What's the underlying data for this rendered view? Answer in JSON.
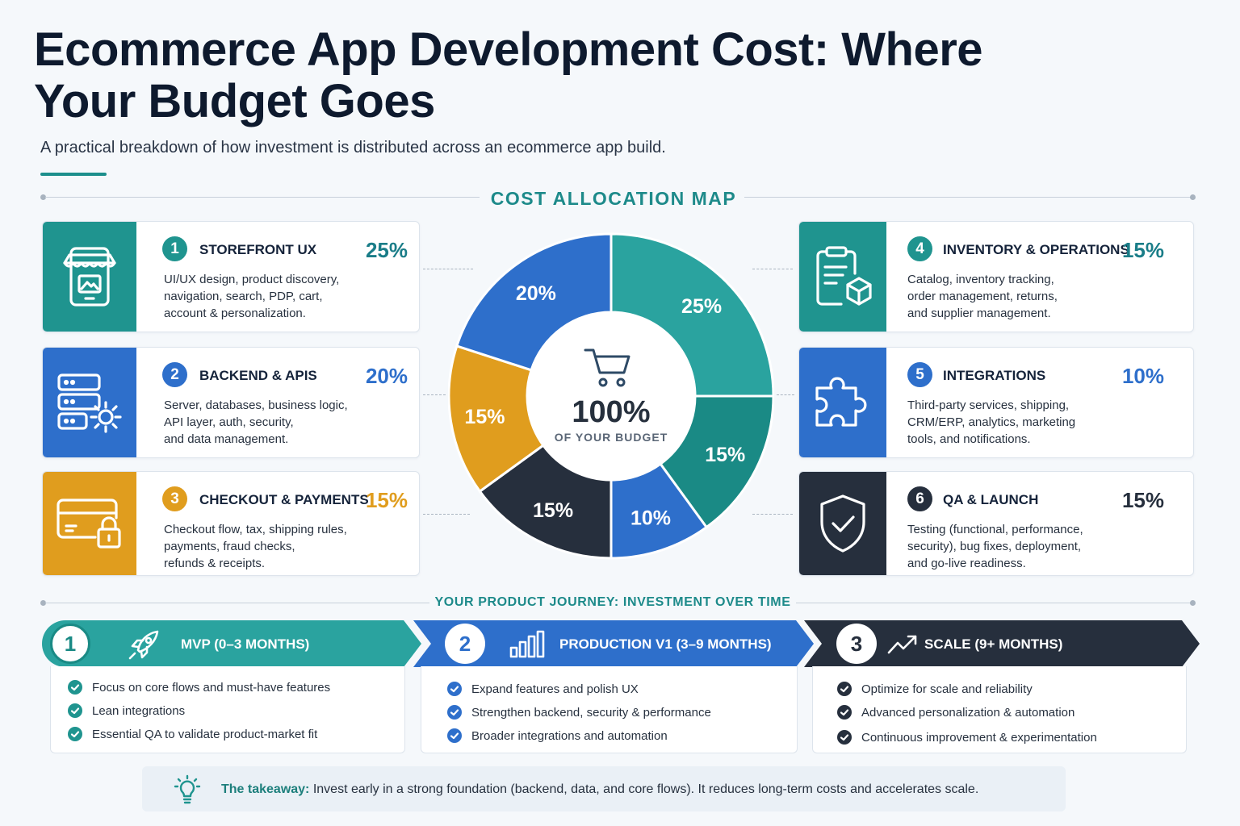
{
  "title": "Ecommerce App Development Cost: Where Your Budget Goes",
  "subtitle": "A practical breakdown of how investment is distributed across an ecommerce app build.",
  "map_heading": "COST ALLOCATION MAP",
  "journey_heading": "YOUR PRODUCT JOURNEY: INVESTMENT OVER TIME",
  "colors": {
    "teal_light": "#2aa39f",
    "teal_dark": "#1a8a85",
    "blue": "#2e6fcb",
    "gold": "#e09d1e",
    "navy": "#262f3d"
  },
  "categories": [
    {
      "num": "1",
      "title": "STOREFRONT UX",
      "pct": "25%",
      "icon": "storefront-phone-icon",
      "lines": [
        "UI/UX design, product discovery,",
        "navigation, search, PDP, cart,",
        "account & personalization."
      ]
    },
    {
      "num": "2",
      "title": "BACKEND & APIS",
      "pct": "20%",
      "icon": "server-gear-icon",
      "lines": [
        "Server, databases, business logic,",
        "API layer, auth, security,",
        "and data management."
      ]
    },
    {
      "num": "3",
      "title": "CHECKOUT & PAYMENTS",
      "pct": "15%",
      "icon": "card-lock-icon",
      "lines": [
        "Checkout flow, tax, shipping rules,",
        "payments, fraud checks,",
        "refunds & receipts."
      ]
    },
    {
      "num": "4",
      "title": "INVENTORY & OPERATIONS",
      "pct": "15%",
      "icon": "clipboard-box-icon",
      "lines": [
        "Catalog, inventory tracking,",
        "order management, returns,",
        "and supplier management."
      ]
    },
    {
      "num": "5",
      "title": "INTEGRATIONS",
      "pct": "10%",
      "icon": "puzzle-icon",
      "lines": [
        "Third-party services, shipping,",
        "CRM/ERP, analytics, marketing",
        "tools, and notifications."
      ]
    },
    {
      "num": "6",
      "title": "QA & LAUNCH",
      "pct": "15%",
      "icon": "shield-check-icon",
      "lines": [
        "Testing (functional, performance,",
        "security), bug fixes, deployment,",
        "and go-live readiness."
      ]
    }
  ],
  "chart_data": {
    "type": "pie",
    "style": "donut",
    "center_value": "100%",
    "center_label": "OF YOUR BUDGET",
    "center_icon": "shopping-cart-icon",
    "slices": [
      {
        "label": "25%",
        "value": 25,
        "color": "#2aa39f"
      },
      {
        "label": "15%",
        "value": 15,
        "color": "#1a8a85"
      },
      {
        "label": "10%",
        "value": 10,
        "color": "#2e6fcb"
      },
      {
        "label": "15%",
        "value": 15,
        "color": "#262f3d"
      },
      {
        "label": "15%",
        "value": 15,
        "color": "#e09d1e"
      },
      {
        "label": "20%",
        "value": 20,
        "color": "#2e6fcb"
      }
    ]
  },
  "phases": [
    {
      "num": "1",
      "label": "MVP  (0–3 MONTHS)",
      "icon": "rocket-icon",
      "items": [
        "Focus on core flows and must-have features",
        "Lean integrations",
        "Essential QA to validate product-market fit"
      ]
    },
    {
      "num": "2",
      "label": "PRODUCTION V1 (3–9 MONTHS)",
      "icon": "bar-chart-icon",
      "items": [
        "Expand features and polish UX",
        "Strengthen backend, security & performance",
        "Broader integrations and automation"
      ]
    },
    {
      "num": "3",
      "label": "SCALE  (9+ MONTHS)",
      "icon": "trend-up-icon",
      "items": [
        "Optimize for scale and reliability",
        "Advanced personalization & automation",
        "Continuous improvement & experimentation"
      ]
    }
  ],
  "takeaway": {
    "label": "The takeaway:",
    "text": " Invest early in a strong foundation (backend, data, and core flows). It reduces long-term costs and accelerates scale.",
    "icon": "lightbulb-icon"
  }
}
